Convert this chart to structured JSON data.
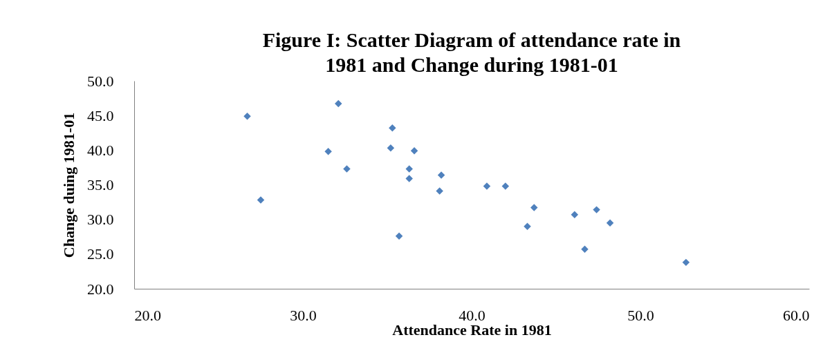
{
  "chart_data": {
    "type": "scatter",
    "title": [
      "Figure I: Scatter Diagram of attendance rate in",
      "1981 and Change during 1981-01"
    ],
    "xlabel": "Attendance Rate in 1981",
    "ylabel": "Change duing 1981-01",
    "x": [
      26.7,
      32.1,
      31.5,
      32.6,
      27.5,
      35.3,
      35.2,
      36.6,
      36.3,
      36.3,
      35.7,
      38.2,
      38.1,
      40.9,
      42.0,
      43.7,
      43.3,
      46.1,
      47.4,
      48.2,
      46.7,
      52.7
    ],
    "series": [
      {
        "color": "#4f81bd",
        "values": [
          44.9,
          46.7,
          39.8,
          37.3,
          32.8,
          43.2,
          40.3,
          39.9,
          37.3,
          35.9,
          27.6,
          36.4,
          34.1,
          34.8,
          34.8,
          31.7,
          29.0,
          30.7,
          31.4,
          29.5,
          25.7,
          23.8
        ]
      }
    ],
    "xlim": [
      20,
      60
    ],
    "ylim": [
      20,
      50
    ],
    "xticks": [
      {
        "value": 20,
        "label": "20.0"
      },
      {
        "value": 30,
        "label": "30.0"
      },
      {
        "value": 40,
        "label": "40.0"
      },
      {
        "value": 50,
        "label": "50.0"
      },
      {
        "value": 60,
        "label": "60.0"
      }
    ],
    "yticks": [
      {
        "value": 20,
        "label": "20.0"
      },
      {
        "value": 25,
        "label": "25.0"
      },
      {
        "value": 30,
        "label": "30.0"
      },
      {
        "value": 35,
        "label": "35.0"
      },
      {
        "value": 40,
        "label": "40.0"
      },
      {
        "value": 45,
        "label": "45.0"
      },
      {
        "value": 50,
        "label": "50.0"
      }
    ],
    "marker": "diamond",
    "grid": false
  }
}
